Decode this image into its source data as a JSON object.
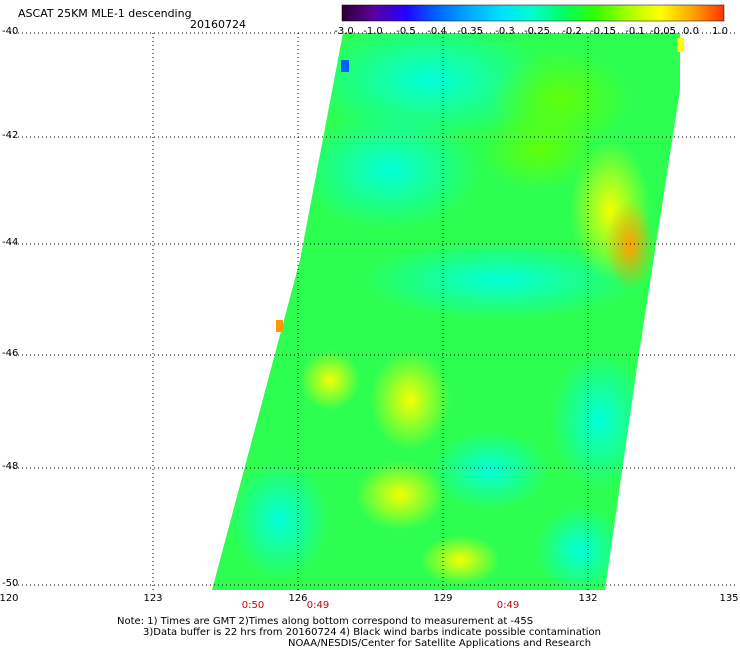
{
  "header": {
    "title": "ASCAT 25KM MLE-1 descending",
    "date": "20160724"
  },
  "colorbar": {
    "labels": [
      "-3.0",
      "-1.0",
      "-0.5",
      "-0.4",
      "-0.35",
      "-0.3",
      "-0.25",
      "-0.2",
      "-0.15",
      "-0.1",
      "-0.05",
      "0.0",
      "1.0"
    ],
    "colors": [
      "#2a0033",
      "#5a00a0",
      "#2200ff",
      "#0066ff",
      "#00aaff",
      "#00e0ff",
      "#00ffc8",
      "#00ff60",
      "#33ff00",
      "#aaff00",
      "#ffff00",
      "#ffa500",
      "#ff3300"
    ]
  },
  "axes": {
    "lat_labels": [
      "-40",
      "-42",
      "-44",
      "-46",
      "-48",
      "-50"
    ],
    "lon_labels": [
      "120",
      "123",
      "126",
      "129",
      "132",
      "135"
    ]
  },
  "times": [
    "0:50",
    "0:49",
    "0:49"
  ],
  "notes": {
    "line1": "Note: 1) Times are GMT 2)Times along bottom correspond to measurement at -45S",
    "line2": "3)Data buffer is 22 hrs from 20160724 4) Black wind barbs indicate possible contamination",
    "line3": "NOAA/NESDIS/Center for Satellite Applications and Research"
  }
}
